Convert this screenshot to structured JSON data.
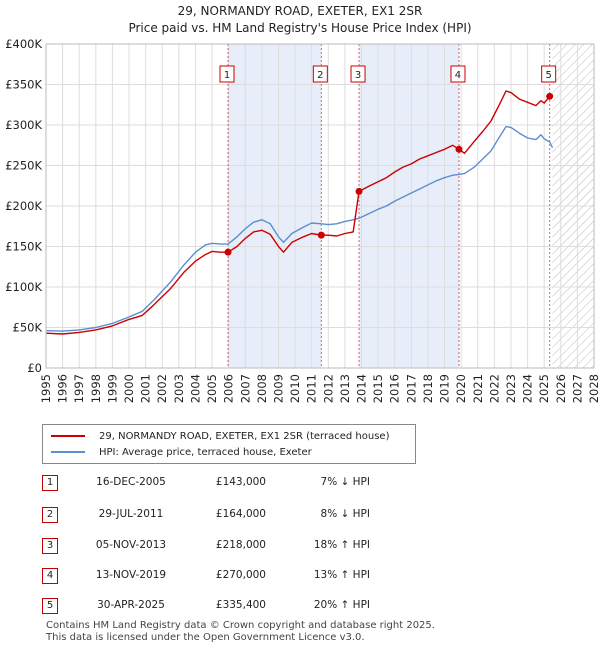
{
  "title_line1": "29, NORMANDY ROAD, EXETER, EX1 2SR",
  "title_line2": "Price paid vs. HM Land Registry's House Price Index (HPI)",
  "chart_data": {
    "type": "line",
    "title": "29, NORMANDY ROAD, EXETER, EX1 2SR — Price paid vs. HM Land Registry's House Price Index (HPI)",
    "xlim": [
      1995,
      2028
    ],
    "ylim": [
      0,
      400000
    ],
    "x_ticks": [
      "1995",
      "1996",
      "1997",
      "1998",
      "1999",
      "2000",
      "2001",
      "2002",
      "2003",
      "2004",
      "2005",
      "2006",
      "2007",
      "2008",
      "2009",
      "2010",
      "2011",
      "2012",
      "2013",
      "2014",
      "2015",
      "2016",
      "2017",
      "2018",
      "2019",
      "2020",
      "2021",
      "2022",
      "2023",
      "2024",
      "2025",
      "2026",
      "2027",
      "2028"
    ],
    "y_ticks": [
      {
        "value": 0,
        "label": "£0"
      },
      {
        "value": 50000,
        "label": "£50K"
      },
      {
        "value": 100000,
        "label": "£100K"
      },
      {
        "value": 150000,
        "label": "£150K"
      },
      {
        "value": 200000,
        "label": "£200K"
      },
      {
        "value": 250000,
        "label": "£250K"
      },
      {
        "value": 300000,
        "label": "£300K"
      },
      {
        "value": 350000,
        "label": "£350K"
      },
      {
        "value": 400000,
        "label": "£400K"
      }
    ],
    "hatched_region_start": 2025.5,
    "series": [
      {
        "name": "29, NORMANDY ROAD, EXETER, EX1 2SR (terraced house)",
        "color": "#cc0000",
        "points": [
          [
            1995.0,
            43000
          ],
          [
            1996.0,
            42000
          ],
          [
            1997.0,
            44000
          ],
          [
            1998.0,
            47000
          ],
          [
            1999.0,
            52000
          ],
          [
            2000.0,
            60000
          ],
          [
            2000.8,
            65000
          ],
          [
            2001.5,
            78000
          ],
          [
            2002.5,
            98000
          ],
          [
            2003.3,
            118000
          ],
          [
            2004.0,
            132000
          ],
          [
            2004.6,
            140000
          ],
          [
            2005.0,
            144000
          ],
          [
            2005.5,
            143000
          ],
          [
            2005.96,
            143000
          ],
          [
            2006.5,
            150000
          ],
          [
            2007.0,
            160000
          ],
          [
            2007.5,
            168000
          ],
          [
            2008.0,
            170000
          ],
          [
            2008.5,
            165000
          ],
          [
            2009.0,
            150000
          ],
          [
            2009.3,
            143000
          ],
          [
            2009.8,
            155000
          ],
          [
            2010.5,
            162000
          ],
          [
            2011.0,
            166000
          ],
          [
            2011.58,
            164000
          ],
          [
            2012.0,
            164000
          ],
          [
            2012.5,
            163000
          ],
          [
            2013.0,
            166000
          ],
          [
            2013.5,
            168000
          ],
          [
            2013.85,
            218000
          ],
          [
            2014.5,
            225000
          ],
          [
            2015.0,
            230000
          ],
          [
            2015.5,
            235000
          ],
          [
            2016.0,
            242000
          ],
          [
            2016.5,
            248000
          ],
          [
            2017.0,
            252000
          ],
          [
            2017.5,
            258000
          ],
          [
            2018.0,
            262000
          ],
          [
            2018.5,
            266000
          ],
          [
            2019.0,
            270000
          ],
          [
            2019.5,
            275000
          ],
          [
            2019.87,
            270000
          ],
          [
            2020.2,
            265000
          ],
          [
            2020.8,
            280000
          ],
          [
            2021.3,
            292000
          ],
          [
            2021.8,
            305000
          ],
          [
            2022.3,
            325000
          ],
          [
            2022.7,
            342000
          ],
          [
            2023.0,
            340000
          ],
          [
            2023.5,
            332000
          ],
          [
            2024.0,
            328000
          ],
          [
            2024.5,
            324000
          ],
          [
            2024.8,
            330000
          ],
          [
            2025.0,
            327000
          ],
          [
            2025.33,
            335400
          ],
          [
            2025.5,
            338000
          ]
        ]
      },
      {
        "name": "HPI: Average price, terraced house, Exeter",
        "color": "#5b8fcf",
        "points": [
          [
            1995.0,
            46000
          ],
          [
            1996.0,
            45500
          ],
          [
            1997.0,
            47000
          ],
          [
            1998.0,
            50000
          ],
          [
            1999.0,
            55000
          ],
          [
            2000.0,
            63000
          ],
          [
            2000.8,
            70000
          ],
          [
            2001.5,
            84000
          ],
          [
            2002.5,
            106000
          ],
          [
            2003.3,
            127000
          ],
          [
            2004.0,
            143000
          ],
          [
            2004.6,
            152000
          ],
          [
            2005.0,
            154000
          ],
          [
            2005.5,
            153000
          ],
          [
            2005.96,
            153000
          ],
          [
            2006.5,
            162000
          ],
          [
            2007.0,
            172000
          ],
          [
            2007.5,
            180000
          ],
          [
            2008.0,
            183000
          ],
          [
            2008.5,
            178000
          ],
          [
            2009.0,
            162000
          ],
          [
            2009.3,
            155000
          ],
          [
            2009.8,
            166000
          ],
          [
            2010.5,
            174000
          ],
          [
            2011.0,
            179000
          ],
          [
            2011.58,
            178000
          ],
          [
            2012.0,
            177000
          ],
          [
            2012.5,
            178000
          ],
          [
            2013.0,
            181000
          ],
          [
            2013.5,
            183000
          ],
          [
            2013.85,
            185000
          ],
          [
            2014.5,
            191000
          ],
          [
            2015.0,
            196000
          ],
          [
            2015.5,
            200000
          ],
          [
            2016.0,
            206000
          ],
          [
            2016.5,
            211000
          ],
          [
            2017.0,
            216000
          ],
          [
            2017.5,
            221000
          ],
          [
            2018.0,
            226000
          ],
          [
            2018.5,
            231000
          ],
          [
            2019.0,
            235000
          ],
          [
            2019.5,
            238000
          ],
          [
            2019.87,
            239000
          ],
          [
            2020.2,
            240000
          ],
          [
            2020.8,
            248000
          ],
          [
            2021.3,
            258000
          ],
          [
            2021.8,
            268000
          ],
          [
            2022.3,
            285000
          ],
          [
            2022.7,
            298000
          ],
          [
            2023.0,
            297000
          ],
          [
            2023.5,
            290000
          ],
          [
            2024.0,
            284000
          ],
          [
            2024.5,
            282000
          ],
          [
            2024.8,
            288000
          ],
          [
            2025.0,
            283000
          ],
          [
            2025.33,
            279000
          ],
          [
            2025.5,
            272000
          ]
        ]
      }
    ],
    "sale_markers": [
      {
        "label": "1",
        "x": 2005.96,
        "y": 143000
      },
      {
        "label": "2",
        "x": 2011.58,
        "y": 164000
      },
      {
        "label": "3",
        "x": 2013.85,
        "y": 218000
      },
      {
        "label": "4",
        "x": 2019.87,
        "y": 270000
      },
      {
        "label": "5",
        "x": 2025.33,
        "y": 335400
      }
    ],
    "shaded_periods": [
      [
        2005.96,
        2011.58
      ],
      [
        2013.85,
        2019.87
      ]
    ]
  },
  "legend": {
    "property_label": "29, NORMANDY ROAD, EXETER, EX1 2SR (terraced house)",
    "hpi_label": "HPI: Average price, terraced house, Exeter",
    "property_color": "#cc0000",
    "hpi_color": "#5b8fcf"
  },
  "transactions": [
    {
      "num": "1",
      "date": "16-DEC-2005",
      "price": "£143,000",
      "hpi": "7% ↓ HPI"
    },
    {
      "num": "2",
      "date": "29-JUL-2011",
      "price": "£164,000",
      "hpi": "8% ↓ HPI"
    },
    {
      "num": "3",
      "date": "05-NOV-2013",
      "price": "£218,000",
      "hpi": "18% ↑ HPI"
    },
    {
      "num": "4",
      "date": "13-NOV-2019",
      "price": "£270,000",
      "hpi": "13% ↑ HPI"
    },
    {
      "num": "5",
      "date": "30-APR-2025",
      "price": "£335,400",
      "hpi": "20% ↑ HPI"
    }
  ],
  "footer_line1": "Contains HM Land Registry data © Crown copyright and database right 2025.",
  "footer_line2": "This data is licensed under the Open Government Licence v3.0."
}
